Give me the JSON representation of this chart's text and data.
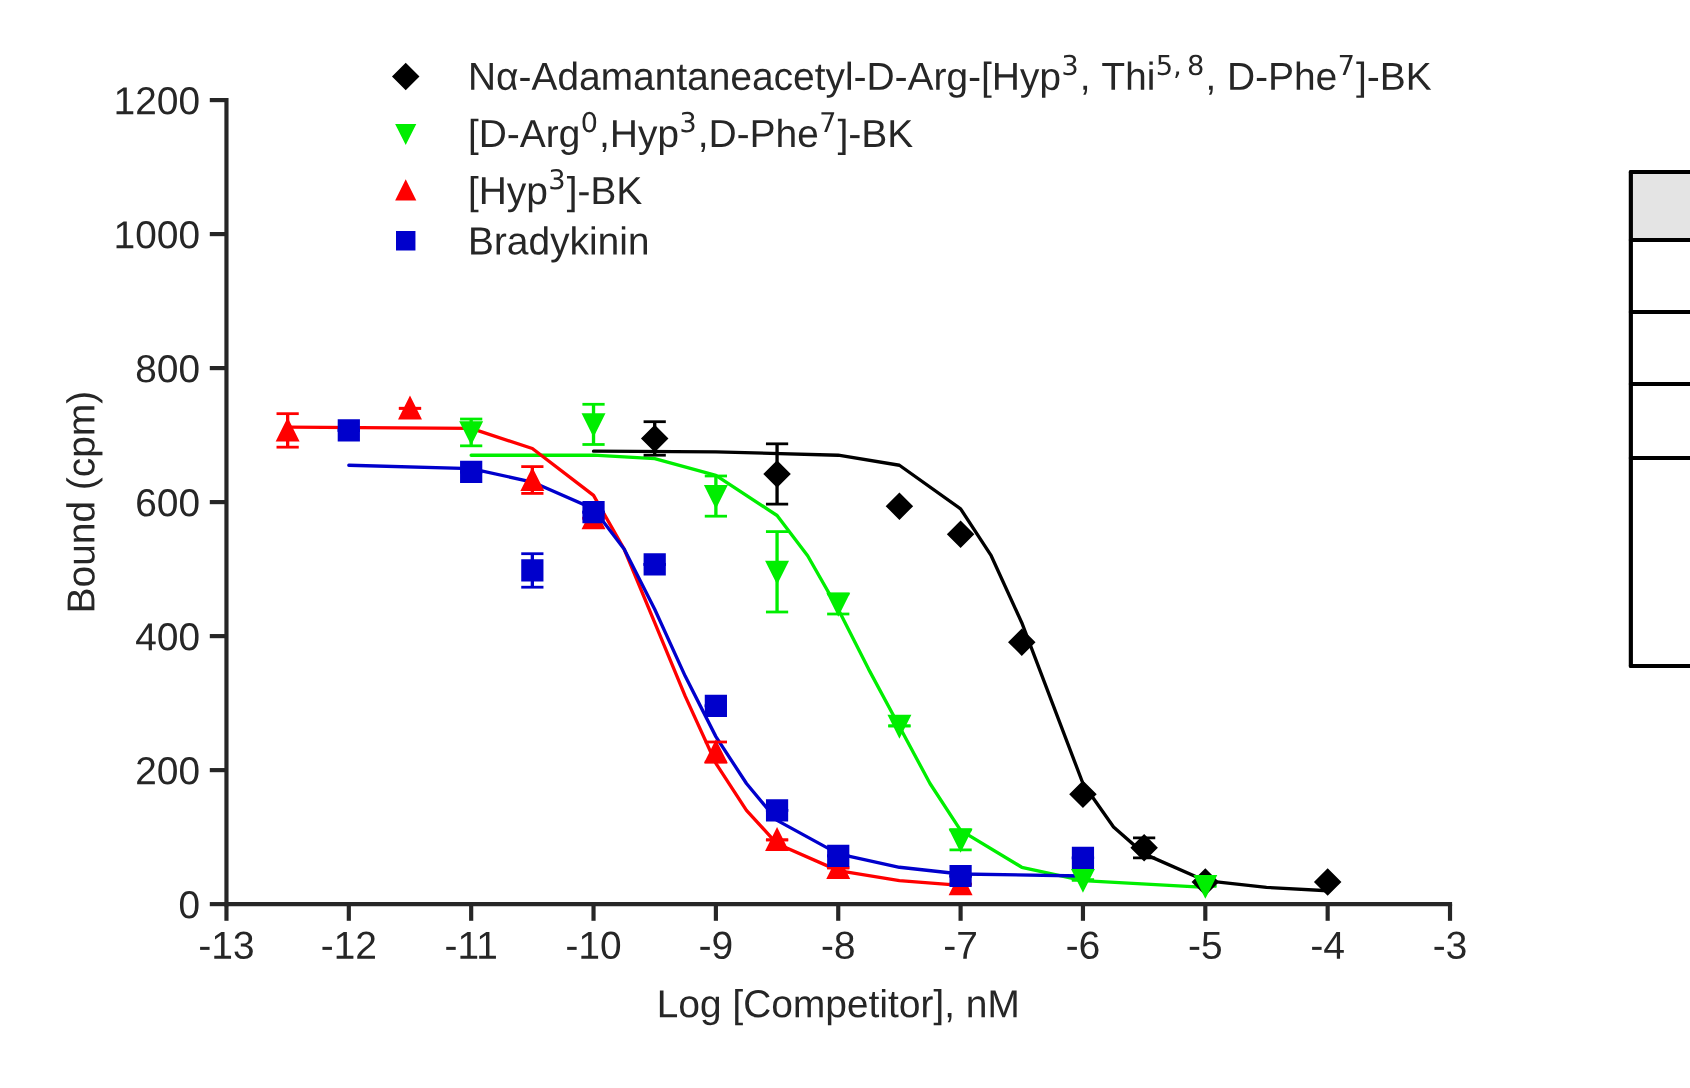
{
  "chart_data": {
    "type": "scatter",
    "xlabel": "Log [Competitor], nM",
    "ylabel": "Bound (cpm)",
    "xlim": [
      -13,
      -3
    ],
    "xticks": [
      -13,
      -12,
      -11,
      -10,
      -9,
      -8,
      -7,
      -6,
      -5,
      -4,
      -3
    ],
    "ylim": [
      0,
      1200
    ],
    "yticks": [
      0,
      200,
      400,
      600,
      800,
      1000,
      1200
    ],
    "grid": false,
    "legend": "top",
    "series": [
      {
        "name": "Nα-Adamantaneacetyl-D-Arg-[Hyp$^{3}$, Thi$^{5,8}$, D-Phe$^{7}$]-BK",
        "marker": "diamond",
        "color": "#000000",
        "x": [
          -9.5,
          -8.5,
          -7.5,
          -7,
          -6.5,
          -6,
          -5.5,
          -5,
          -4
        ],
        "values": [
          695,
          642,
          594,
          552,
          391,
          164,
          84,
          33,
          33
        ],
        "errors": [
          25,
          45,
          null,
          null,
          null,
          null,
          15,
          null,
          null
        ]
      },
      {
        "name": "[D-Arg$^{0}$,Hyp$^{3}$,D-Phe$^{7}$]-BK",
        "marker": "triangle-down",
        "color": "#00ee00",
        "x": [
          -11,
          -10,
          -9,
          -8.5,
          -8,
          -7.5,
          -7,
          -6,
          -5
        ],
        "values": [
          704,
          716,
          609,
          496,
          448,
          266,
          96,
          36,
          27
        ],
        "errors": [
          20,
          30,
          30,
          60,
          15,
          null,
          15,
          null,
          null
        ]
      },
      {
        "name": "[Hyp$^{3}$]-BK",
        "marker": "triangle",
        "color": "#ff0000",
        "x": [
          -12.5,
          -11.5,
          -10.5,
          -10,
          -9,
          -8.5,
          -8,
          -7
        ],
        "values": [
          707,
          740,
          633,
          576,
          227,
          96,
          54,
          30
        ],
        "errors": [
          25,
          null,
          20,
          null,
          15,
          null,
          null,
          null
        ]
      },
      {
        "name": "Bradykinin",
        "marker": "square",
        "color": "#0000cc",
        "x": [
          -12,
          -11,
          -10.5,
          -10,
          -9.5,
          -9,
          -8.5,
          -8,
          -7,
          -6
        ],
        "values": [
          707,
          645,
          498,
          585,
          507,
          296,
          140,
          72,
          42,
          69
        ],
        "errors": [
          null,
          null,
          25,
          null,
          null,
          null,
          null,
          null,
          null,
          null
        ]
      },
      {
        "type": "line",
        "marker": "none",
        "color": "#000000",
        "x": [
          -10,
          -9,
          -8,
          -7.5,
          -7,
          -6.75,
          -6.5,
          -6.25,
          -6,
          -5.75,
          -5.5,
          -5,
          -4.5,
          -4
        ],
        "values": [
          676,
          675,
          670,
          655,
          590,
          520,
          420,
          300,
          180,
          115,
          75,
          35,
          25,
          20
        ]
      },
      {
        "type": "line",
        "marker": "none",
        "color": "#00ee00",
        "x": [
          -11,
          -10,
          -9.5,
          -9,
          -8.5,
          -8.25,
          -8,
          -7.75,
          -7.5,
          -7.25,
          -7,
          -6.5,
          -6,
          -5
        ],
        "values": [
          670,
          670,
          665,
          640,
          580,
          520,
          440,
          350,
          265,
          180,
          110,
          55,
          35,
          25
        ]
      },
      {
        "type": "line",
        "marker": "none",
        "color": "#ff0000",
        "x": [
          -12.5,
          -11,
          -10.5,
          -10,
          -9.75,
          -9.5,
          -9.25,
          -9,
          -8.75,
          -8.5,
          -8,
          -7.5,
          -7
        ],
        "values": [
          712,
          710,
          680,
          610,
          530,
          420,
          310,
          210,
          140,
          90,
          50,
          35,
          28
        ]
      },
      {
        "type": "line",
        "marker": "none",
        "color": "#0000cc",
        "x": [
          -12,
          -11,
          -10.5,
          -10,
          -9.75,
          -9.5,
          -9.25,
          -9,
          -8.75,
          -8.5,
          -8,
          -7.5,
          -7,
          -6
        ],
        "values": [
          655,
          650,
          630,
          590,
          530,
          440,
          340,
          250,
          180,
          125,
          75,
          55,
          45,
          42
        ]
      }
    ]
  }
}
